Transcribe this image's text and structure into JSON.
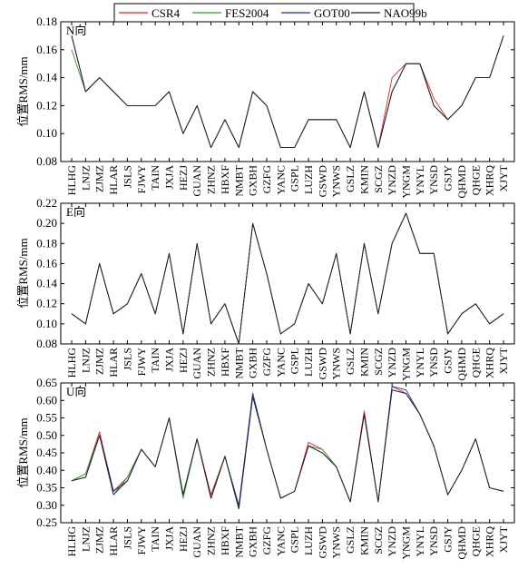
{
  "legend": [
    {
      "name": "CSR4",
      "color": "#d9281c"
    },
    {
      "name": "FES2004",
      "color": "#2e9e2e"
    },
    {
      "name": "GOT00",
      "color": "#1a2aa8"
    },
    {
      "name": "NAO99b",
      "color": "#222222"
    }
  ],
  "chart_data": [
    {
      "type": "line",
      "panel_label": "N向",
      "ylabel": "位置RMS/mm",
      "ylim": [
        0.08,
        0.18
      ],
      "yticks": [
        "0.08",
        "0.10",
        "0.12",
        "0.14",
        "0.16",
        "0.18"
      ],
      "ytick_values": [
        0.08,
        0.1,
        0.12,
        0.14,
        0.16,
        0.18
      ],
      "categories": [
        "HLHG",
        "LNJZ",
        "ZJMZ",
        "HLAR",
        "JSLS",
        "FJWY",
        "TAIN",
        "JXJA",
        "HEZJ",
        "GUAN",
        "ZHNZ",
        "HBXF",
        "NMBT",
        "GXBH",
        "GZFG",
        "YANC",
        "GSPL",
        "LUZH",
        "GSWD",
        "YNWS",
        "GSLZ",
        "KMIN",
        "SCGZ",
        "YNZD",
        "YNGM",
        "YNYL",
        "YNSD",
        "GSJY",
        "QHMD",
        "QHGE",
        "XHRQ",
        "XJYT"
      ],
      "series": [
        {
          "name": "CSR4",
          "values": [
            0.17,
            0.13,
            0.14,
            0.13,
            0.12,
            0.12,
            0.12,
            0.13,
            0.1,
            0.12,
            0.09,
            0.11,
            0.09,
            0.13,
            0.12,
            0.09,
            0.09,
            0.11,
            0.11,
            0.11,
            0.09,
            0.13,
            0.09,
            0.14,
            0.15,
            0.15,
            0.125,
            0.11,
            0.12,
            0.14,
            0.14,
            0.17
          ]
        },
        {
          "name": "FES2004",
          "values": [
            0.16,
            0.13,
            0.14,
            0.13,
            0.12,
            0.12,
            0.12,
            0.13,
            0.1,
            0.12,
            0.09,
            0.11,
            0.09,
            0.13,
            0.12,
            0.09,
            0.09,
            0.11,
            0.11,
            0.11,
            0.09,
            0.13,
            0.09,
            0.13,
            0.15,
            0.15,
            0.12,
            0.11,
            0.12,
            0.14,
            0.14,
            0.17
          ]
        },
        {
          "name": "GOT00",
          "values": [
            0.17,
            0.13,
            0.14,
            0.13,
            0.12,
            0.12,
            0.12,
            0.13,
            0.1,
            0.12,
            0.09,
            0.11,
            0.09,
            0.13,
            0.12,
            0.09,
            0.09,
            0.11,
            0.11,
            0.11,
            0.09,
            0.13,
            0.09,
            0.13,
            0.15,
            0.15,
            0.12,
            0.11,
            0.12,
            0.14,
            0.14,
            0.17
          ]
        },
        {
          "name": "NAO99b",
          "values": [
            0.17,
            0.13,
            0.14,
            0.13,
            0.12,
            0.12,
            0.12,
            0.13,
            0.1,
            0.12,
            0.09,
            0.11,
            0.09,
            0.13,
            0.12,
            0.09,
            0.09,
            0.11,
            0.11,
            0.11,
            0.09,
            0.13,
            0.09,
            0.13,
            0.15,
            0.15,
            0.12,
            0.11,
            0.12,
            0.14,
            0.14,
            0.17
          ]
        }
      ]
    },
    {
      "type": "line",
      "panel_label": "E向",
      "ylabel": "位置RMS/mm",
      "ylim": [
        0.08,
        0.22
      ],
      "yticks": [
        "0.08",
        "0.10",
        "0.12",
        "0.14",
        "0.16",
        "0.18",
        "0.20",
        "0.22"
      ],
      "ytick_values": [
        0.08,
        0.1,
        0.12,
        0.14,
        0.16,
        0.18,
        0.2,
        0.22
      ],
      "categories": [
        "HLHG",
        "LNJZ",
        "ZJMZ",
        "HLAR",
        "JSLS",
        "FJWY",
        "TAIN",
        "JXJA",
        "HEZJ",
        "GUAN",
        "ZHNZ",
        "HBXF",
        "NMBT",
        "GXBH",
        "GZFG",
        "YANC",
        "GSPL",
        "LUZH",
        "GSWD",
        "YNWS",
        "GSLZ",
        "KMIN",
        "SCGZ",
        "YNZD",
        "YNGM",
        "YNYL",
        "YNSD",
        "GSJY",
        "QHMD",
        "QHGE",
        "XHRQ",
        "XJYT"
      ],
      "series": [
        {
          "name": "CSR4",
          "values": [
            0.11,
            0.1,
            0.16,
            0.11,
            0.12,
            0.15,
            0.11,
            0.17,
            0.09,
            0.18,
            0.1,
            0.12,
            0.08,
            0.2,
            0.15,
            0.09,
            0.1,
            0.14,
            0.12,
            0.17,
            0.09,
            0.18,
            0.11,
            0.18,
            0.21,
            0.17,
            0.17,
            0.09,
            0.11,
            0.12,
            0.1,
            0.11
          ]
        },
        {
          "name": "FES2004",
          "values": [
            0.11,
            0.1,
            0.16,
            0.11,
            0.12,
            0.15,
            0.11,
            0.17,
            0.09,
            0.18,
            0.1,
            0.12,
            0.08,
            0.2,
            0.15,
            0.09,
            0.1,
            0.14,
            0.12,
            0.17,
            0.09,
            0.18,
            0.11,
            0.18,
            0.21,
            0.17,
            0.17,
            0.09,
            0.11,
            0.12,
            0.1,
            0.11
          ]
        },
        {
          "name": "GOT00",
          "values": [
            0.11,
            0.1,
            0.16,
            0.11,
            0.12,
            0.15,
            0.11,
            0.17,
            0.09,
            0.18,
            0.1,
            0.12,
            0.08,
            0.2,
            0.15,
            0.09,
            0.1,
            0.14,
            0.12,
            0.17,
            0.09,
            0.18,
            0.11,
            0.18,
            0.21,
            0.17,
            0.17,
            0.09,
            0.11,
            0.12,
            0.1,
            0.11
          ]
        },
        {
          "name": "NAO99b",
          "values": [
            0.11,
            0.1,
            0.16,
            0.11,
            0.12,
            0.15,
            0.11,
            0.17,
            0.09,
            0.18,
            0.1,
            0.12,
            0.08,
            0.2,
            0.15,
            0.09,
            0.1,
            0.14,
            0.12,
            0.17,
            0.09,
            0.18,
            0.11,
            0.18,
            0.21,
            0.17,
            0.17,
            0.09,
            0.11,
            0.12,
            0.1,
            0.11
          ]
        }
      ]
    },
    {
      "type": "line",
      "panel_label": "U向",
      "ylabel": "位置RMS/mm",
      "ylim": [
        0.25,
        0.65
      ],
      "yticks": [
        "0.25",
        "0.30",
        "0.35",
        "0.40",
        "0.45",
        "0.50",
        "0.55",
        "0.60",
        "0.65"
      ],
      "ytick_values": [
        0.25,
        0.3,
        0.35,
        0.4,
        0.45,
        0.5,
        0.55,
        0.6,
        0.65
      ],
      "categories": [
        "HLHG",
        "LNJZ",
        "ZJMZ",
        "HLAR",
        "JSLS",
        "FJWY",
        "TAIN",
        "JXJA",
        "HEZJ",
        "GUAN",
        "ZHNZ",
        "HBXF",
        "NMBT",
        "GXBH",
        "GZFG",
        "YANC",
        "GSPL",
        "LUZH",
        "GSWD",
        "YNWS",
        "GSLZ",
        "KMIN",
        "SCGZ",
        "YNZD",
        "YNGM",
        "YNYL",
        "YNSD",
        "GSJY",
        "QHMD",
        "QHGE",
        "XHRQ",
        "XJYT"
      ],
      "series": [
        {
          "name": "CSR4",
          "values": [
            0.37,
            0.39,
            0.51,
            0.34,
            0.38,
            0.46,
            0.41,
            0.55,
            0.33,
            0.49,
            0.33,
            0.44,
            0.29,
            0.62,
            0.46,
            0.32,
            0.34,
            0.48,
            0.46,
            0.41,
            0.31,
            0.57,
            0.31,
            0.64,
            0.62,
            0.56,
            0.47,
            0.33,
            0.4,
            0.49,
            0.35,
            0.34
          ]
        },
        {
          "name": "FES2004",
          "values": [
            0.37,
            0.39,
            0.5,
            0.33,
            0.38,
            0.46,
            0.41,
            0.55,
            0.32,
            0.49,
            0.32,
            0.44,
            0.29,
            0.62,
            0.46,
            0.32,
            0.34,
            0.47,
            0.46,
            0.41,
            0.31,
            0.56,
            0.31,
            0.63,
            0.62,
            0.56,
            0.47,
            0.33,
            0.4,
            0.49,
            0.35,
            0.34
          ]
        },
        {
          "name": "GOT00",
          "values": [
            0.37,
            0.38,
            0.5,
            0.33,
            0.37,
            0.46,
            0.41,
            0.55,
            0.33,
            0.49,
            0.32,
            0.44,
            0.3,
            0.62,
            0.46,
            0.32,
            0.34,
            0.47,
            0.45,
            0.41,
            0.31,
            0.56,
            0.31,
            0.64,
            0.63,
            0.56,
            0.47,
            0.33,
            0.4,
            0.49,
            0.35,
            0.34
          ]
        },
        {
          "name": "NAO99b",
          "values": [
            0.37,
            0.38,
            0.5,
            0.34,
            0.37,
            0.46,
            0.41,
            0.55,
            0.33,
            0.49,
            0.32,
            0.44,
            0.29,
            0.61,
            0.46,
            0.32,
            0.34,
            0.47,
            0.45,
            0.41,
            0.31,
            0.56,
            0.31,
            0.63,
            0.62,
            0.56,
            0.47,
            0.33,
            0.4,
            0.49,
            0.35,
            0.34
          ]
        }
      ]
    }
  ]
}
